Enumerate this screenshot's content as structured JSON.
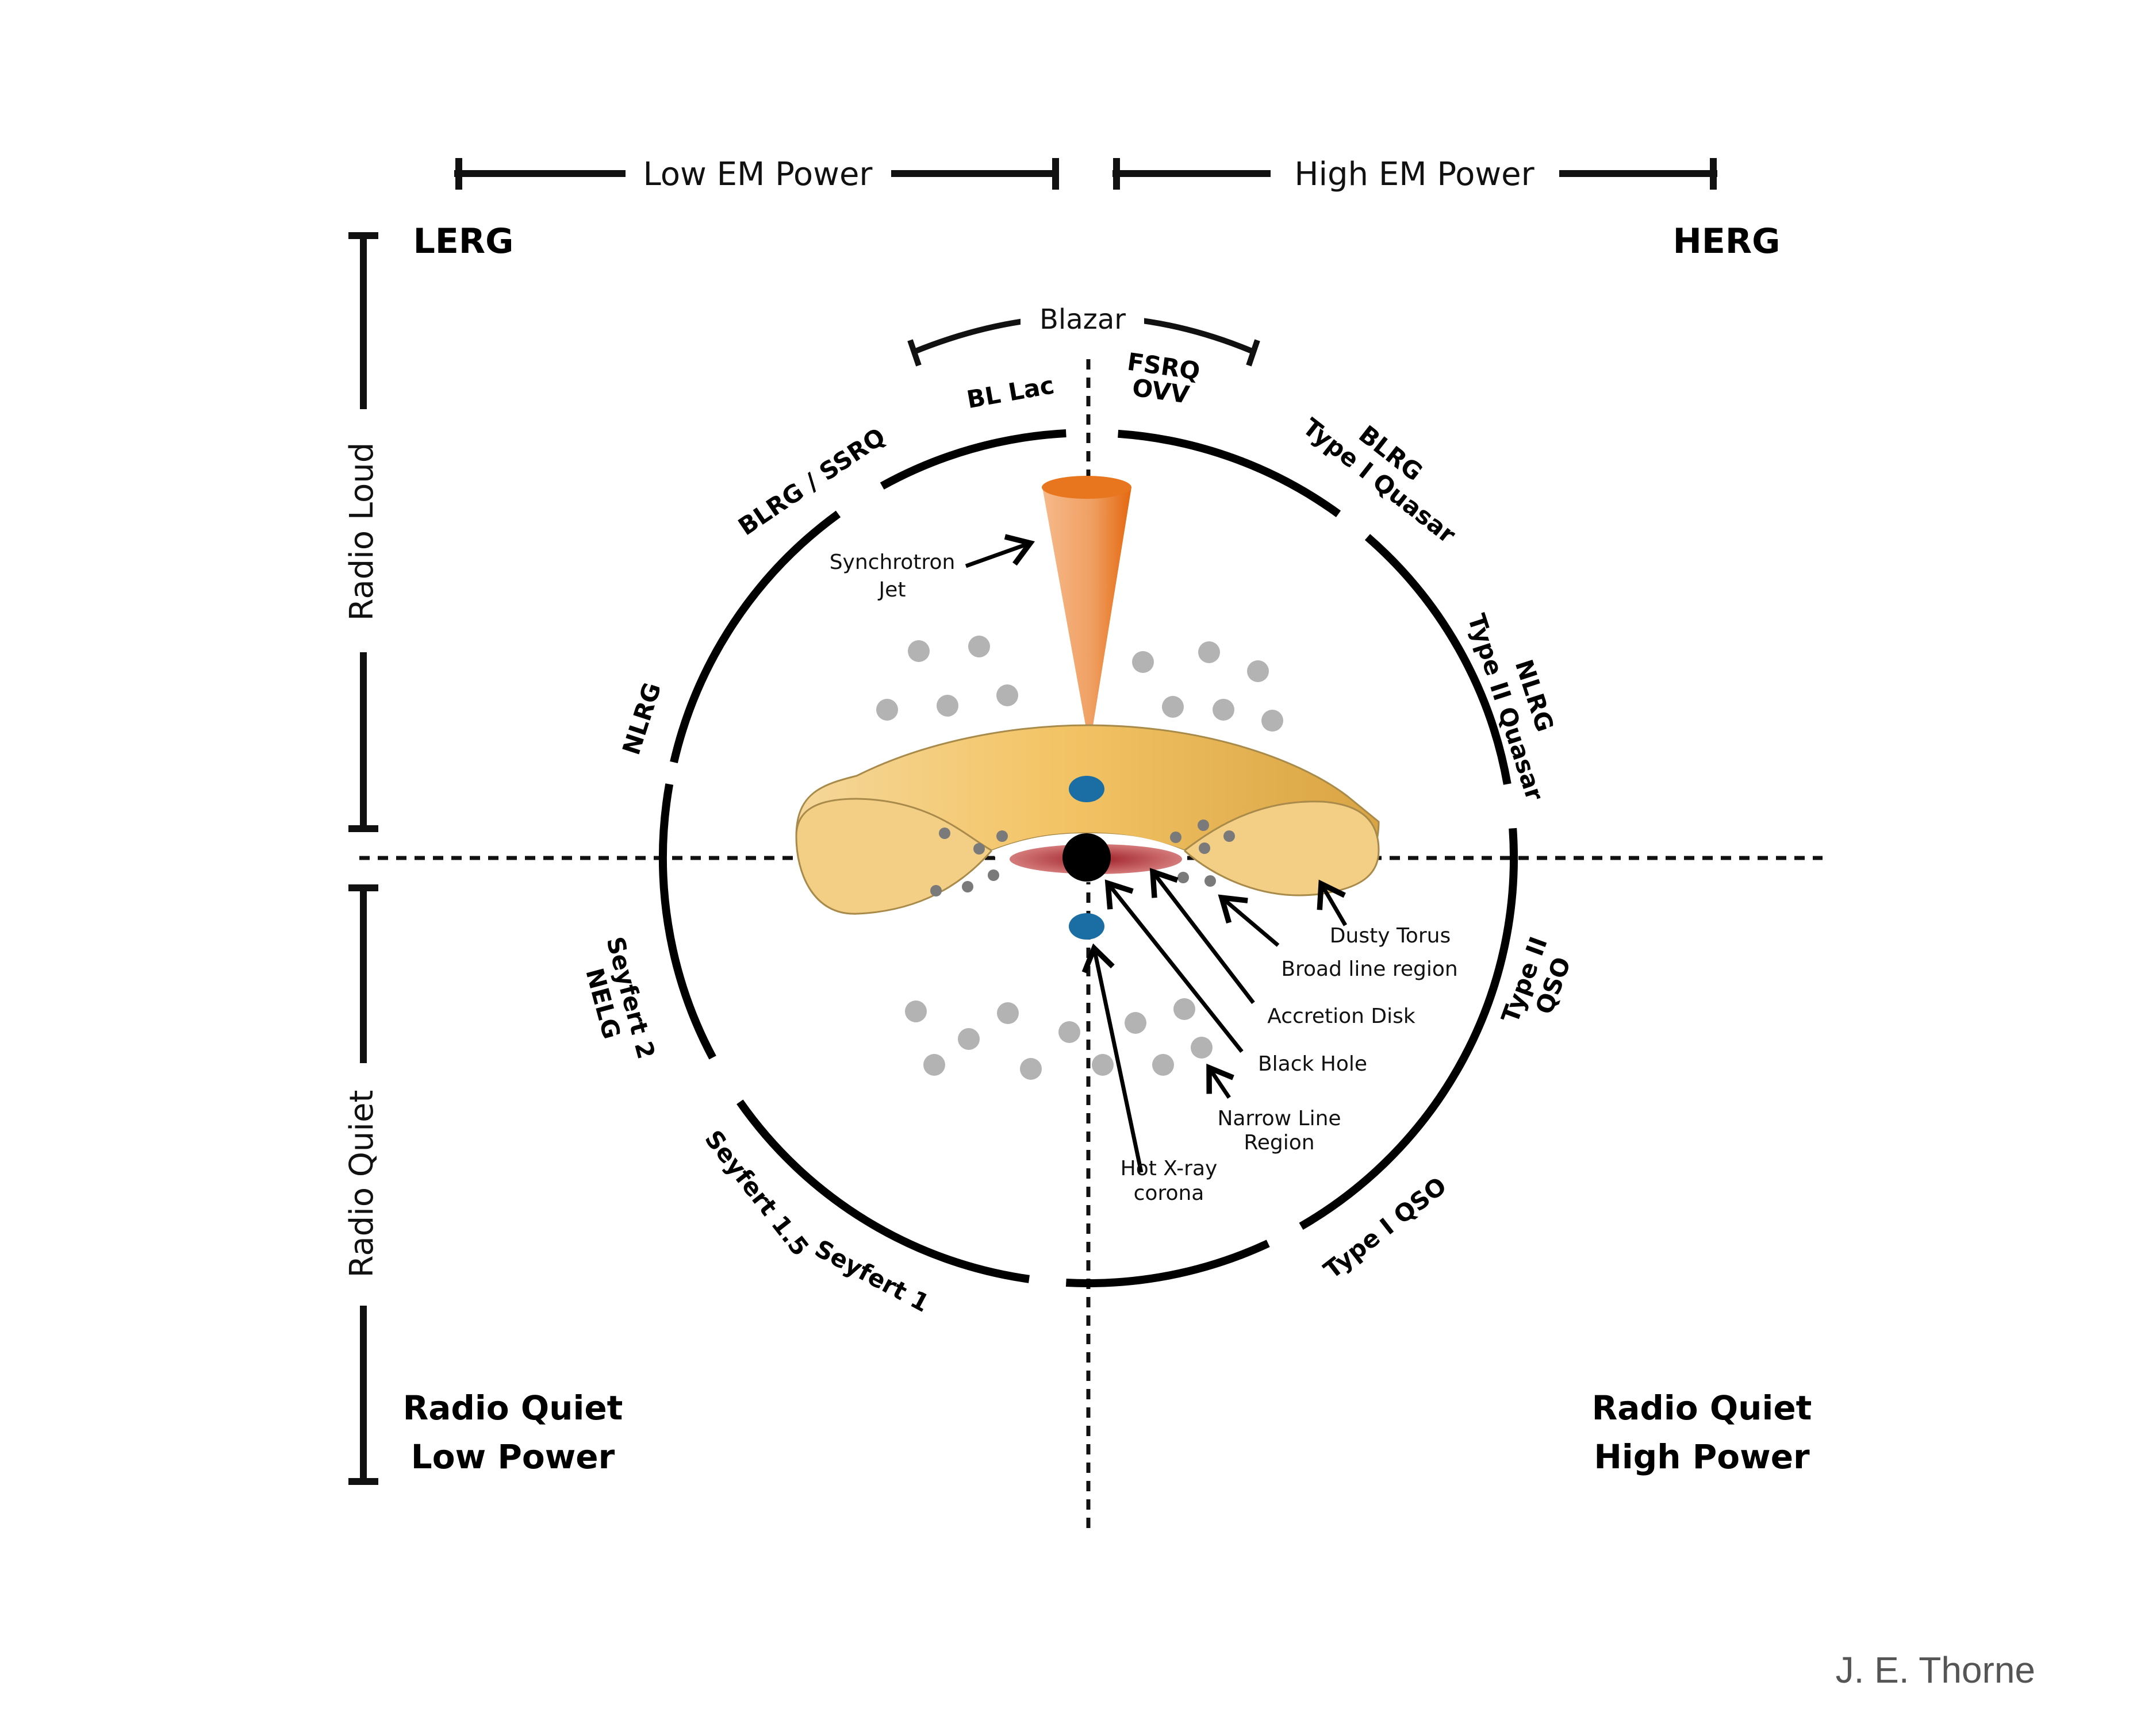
{
  "power_axis": {
    "low_label": "Low EM Power",
    "high_label": "High EM Power"
  },
  "radio_axis": {
    "loud_label": "Radio Loud",
    "quiet_label": "Radio Quiet"
  },
  "corners": {
    "top_left": "LERG",
    "top_right": "HERG",
    "bottom_left_line1": "Radio Quiet",
    "bottom_left_line2": "Low Power",
    "bottom_right_line1": "Radio Quiet",
    "bottom_right_line2": "High Power"
  },
  "blazar_label": "Blazar",
  "classes": {
    "bl_lac": "BL Lac",
    "fsrq": "FSRQ",
    "ovv": "OVV",
    "blrg_ssrq": "BLRG / SSRQ",
    "blrg": "BLRG",
    "type1_quasar": "Type I Quasar",
    "nlrg_left": "NLRG",
    "nlrg_right": "NLRG",
    "type2_quasar": "Type II Quasar",
    "seyfert2": "Seyfert 2",
    "nelg": "NELG",
    "type2": "Type II",
    "qso": "QSO",
    "seyfert15": "Seyfert 1.5",
    "seyfert1": "Seyfert 1",
    "type1_qso": "Type I QSO"
  },
  "components": {
    "synchrotron_line1": "Synchrotron",
    "synchrotron_line2": "Jet",
    "dusty_torus": "Dusty Torus",
    "broad_line_region": "Broad line region",
    "accretion_disk": "Accretion Disk",
    "black_hole": "Black Hole",
    "narrow_line_line1": "Narrow Line",
    "narrow_line_line2": "Region",
    "corona_line1": "Hot X-ray",
    "corona_line2": "corona"
  },
  "credit": "J. E. Thorne",
  "colors": {
    "torus_fill": "#f3cf85",
    "jet_orange": "#e8761e",
    "accretion_red": "#b8343a",
    "blob_blue": "#1a6ea3",
    "cloud_grey": "#b3b3b3",
    "blr_grey": "#7a7a7a"
  }
}
